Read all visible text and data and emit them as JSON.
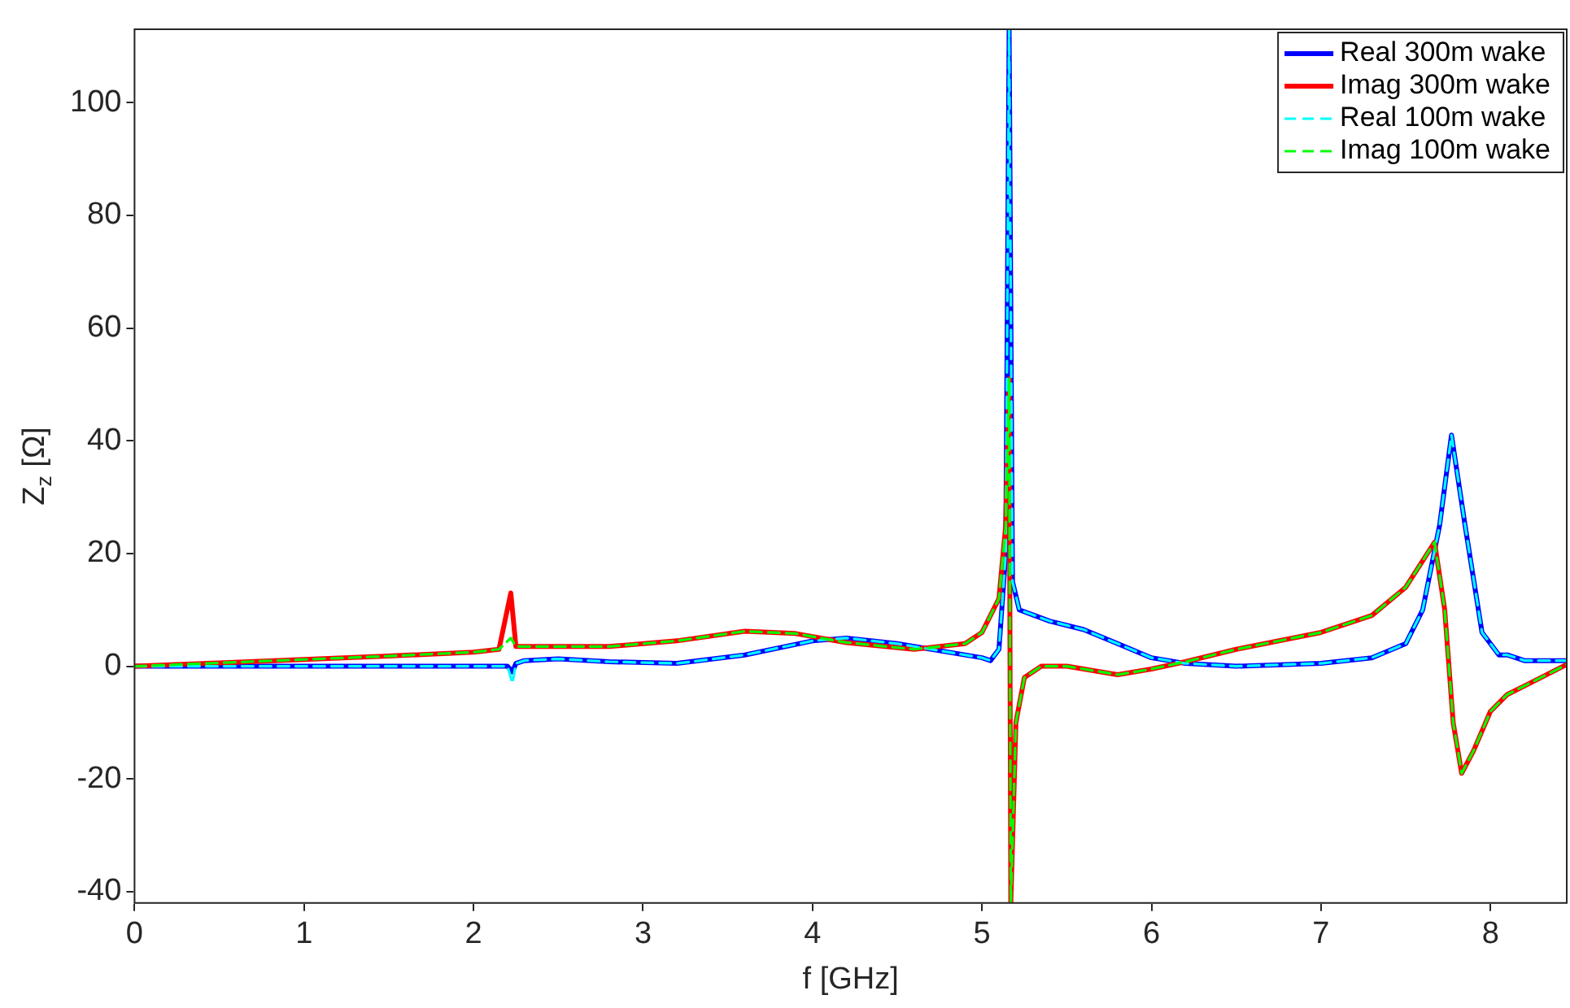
{
  "chart_data": {
    "type": "line",
    "xlabel": "f [GHz]",
    "ylabel": "Z$_{z}$ [Ω]",
    "xlim": [
      0,
      8.45
    ],
    "ylim": [
      -42,
      113
    ],
    "xticks": [
      0,
      1,
      2,
      3,
      4,
      5,
      6,
      7,
      8
    ],
    "yticks": [
      -40,
      -20,
      0,
      20,
      40,
      60,
      80,
      100
    ],
    "grid": false,
    "legend": "top right",
    "marker": "none",
    "series": [
      {
        "name": "Real 300m wake",
        "color": "#0000ff",
        "line_style": "solid",
        "x": [
          0,
          0.5,
          1,
          1.5,
          2,
          2.2,
          2.23,
          2.25,
          2.3,
          2.5,
          2.8,
          3.2,
          3.6,
          4,
          4.2,
          4.5,
          5,
          5.05,
          5.1,
          5.14,
          5.16,
          5.18,
          5.22,
          5.4,
          5.6,
          5.8,
          6,
          6.2,
          6.5,
          7,
          7.3,
          7.5,
          7.6,
          7.7,
          7.77,
          7.85,
          7.95,
          8.05,
          8.1,
          8.2,
          8.45
        ],
        "values": [
          0,
          0,
          0,
          0,
          0,
          0,
          -1,
          0.5,
          1,
          1.3,
          0.8,
          0.5,
          2,
          4.5,
          5,
          4,
          1.5,
          1,
          3,
          20,
          113,
          15,
          10,
          8,
          6.5,
          4,
          1.5,
          0.5,
          0,
          0.5,
          1.5,
          4,
          10,
          25,
          41,
          25,
          6,
          2,
          2,
          1,
          1
        ]
      },
      {
        "name": "Imag 300m wake",
        "color": "#ff0000",
        "line_style": "solid",
        "x": [
          0,
          0.5,
          1,
          1.5,
          2,
          2.15,
          2.22,
          2.25,
          2.5,
          2.8,
          3.2,
          3.6,
          3.9,
          4.2,
          4.6,
          4.9,
          5,
          5.1,
          5.14,
          5.16,
          5.17,
          5.2,
          5.25,
          5.35,
          5.5,
          5.8,
          6,
          6.2,
          6.5,
          7,
          7.3,
          7.5,
          7.67,
          7.73,
          7.78,
          7.83,
          7.9,
          8,
          8.1,
          8.2,
          8.45
        ],
        "values": [
          0,
          0.6,
          1.2,
          1.8,
          2.5,
          3,
          13,
          3.5,
          3.5,
          3.5,
          4.5,
          6.2,
          5.8,
          4.2,
          3,
          4,
          6,
          12,
          25,
          51,
          -42,
          -10,
          -2,
          0,
          0,
          -1.5,
          -0.5,
          0.8,
          3,
          6,
          9,
          14,
          22,
          10,
          -10,
          -19,
          -15,
          -8,
          -5,
          -3.5,
          0.3
        ]
      },
      {
        "name": "Real 100m wake",
        "color": "#00ffff",
        "line_style": "dashed",
        "x": [
          0,
          0.5,
          1,
          1.5,
          2,
          2.2,
          2.23,
          2.25,
          2.3,
          2.5,
          2.8,
          3.2,
          3.6,
          4,
          4.2,
          4.5,
          5,
          5.05,
          5.1,
          5.14,
          5.16,
          5.18,
          5.22,
          5.4,
          5.6,
          5.8,
          6,
          6.2,
          6.5,
          7,
          7.3,
          7.5,
          7.6,
          7.7,
          7.77,
          7.85,
          7.95,
          8.05,
          8.1,
          8.2,
          8.45
        ],
        "values": [
          0,
          0,
          0,
          0,
          0,
          0,
          -3,
          0.5,
          1,
          1.3,
          0.8,
          0.5,
          2,
          4.5,
          5,
          4,
          1.5,
          1,
          3,
          20,
          113,
          15,
          10,
          8,
          6.5,
          4,
          1.5,
          0.5,
          0,
          0.5,
          1.5,
          4,
          10,
          25,
          41,
          25,
          6,
          2,
          2,
          1,
          1
        ]
      },
      {
        "name": "Imag 100m wake",
        "color": "#00ff00",
        "line_style": "dashed",
        "x": [
          0,
          0.5,
          1,
          1.5,
          2,
          2.15,
          2.22,
          2.25,
          2.5,
          2.8,
          3.2,
          3.6,
          3.9,
          4.2,
          4.6,
          4.9,
          5,
          5.1,
          5.14,
          5.16,
          5.17,
          5.2,
          5.25,
          5.35,
          5.5,
          5.8,
          6,
          6.2,
          6.5,
          7,
          7.3,
          7.5,
          7.67,
          7.73,
          7.78,
          7.83,
          7.9,
          8,
          8.1,
          8.2,
          8.45
        ],
        "values": [
          0,
          0.6,
          1.2,
          1.8,
          2.5,
          3,
          5,
          3.5,
          3.5,
          3.5,
          4.5,
          6.2,
          5.8,
          4.2,
          3,
          4,
          6,
          12,
          25,
          51,
          -42,
          -10,
          -2,
          0,
          0,
          -1.5,
          -0.5,
          0.8,
          3,
          6,
          9,
          14,
          22,
          10,
          -10,
          -19,
          -15,
          -8,
          -5,
          -3.5,
          0.3
        ]
      }
    ]
  }
}
